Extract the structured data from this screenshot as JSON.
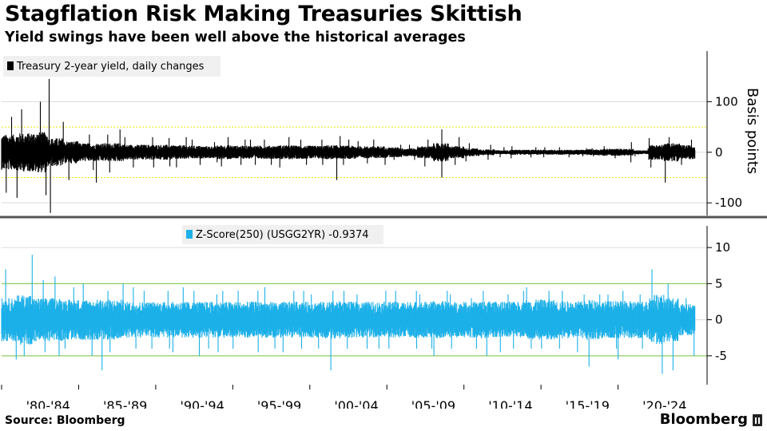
{
  "header": {
    "title": "Stagflation Risk Making Treasuries Skittish",
    "subtitle": "Yield swings have been well above the historical averages"
  },
  "footer": {
    "source": "Source: Bloomberg",
    "brand": "Bloomberg"
  },
  "colors": {
    "top_series": "#000000",
    "bottom_series": "#1cb0e8",
    "top_bands": "#e8e800",
    "bottom_bands": "#7ac943",
    "zero_line": "#e03030",
    "divider": "#555555"
  },
  "chart_data": [
    {
      "type": "bar",
      "panel": "top",
      "series": [
        {
          "name": "Treasury 2-year yield, daily changes",
          "color": "#000000"
        }
      ],
      "ylabel": "Basis points",
      "ylim": [
        -125,
        200
      ],
      "yticks": [
        100,
        0,
        -100
      ],
      "ytick_labels": [
        "100",
        "0",
        "-100"
      ],
      "reference_lines": [
        50,
        -50
      ],
      "x": [
        "1980",
        "1981",
        "1982",
        "1983",
        "1984",
        "1985",
        "1986",
        "1987",
        "1988",
        "1989",
        "1990",
        "1991",
        "1992",
        "1993",
        "1994",
        "1995",
        "1996",
        "1997",
        "1998",
        "1999",
        "2000",
        "2001",
        "2002",
        "2003",
        "2004",
        "2005",
        "2006",
        "2007",
        "2008",
        "2009",
        "2010",
        "2011",
        "2012",
        "2013",
        "2014",
        "2015",
        "2016",
        "2017",
        "2018",
        "2019",
        "2020",
        "2021",
        "2022",
        "2023",
        "2024"
      ],
      "max": [
        70,
        85,
        100,
        145,
        60,
        35,
        35,
        45,
        30,
        30,
        28,
        30,
        25,
        20,
        30,
        25,
        25,
        25,
        30,
        25,
        25,
        32,
        25,
        22,
        25,
        15,
        15,
        25,
        45,
        30,
        18,
        15,
        10,
        12,
        10,
        10,
        10,
        8,
        8,
        12,
        20,
        8,
        28,
        30,
        25
      ],
      "min": [
        -80,
        -90,
        -85,
        -120,
        -55,
        -35,
        -60,
        -40,
        -30,
        -30,
        -28,
        -30,
        -25,
        -20,
        -28,
        -25,
        -25,
        -25,
        -30,
        -25,
        -25,
        -55,
        -25,
        -22,
        -25,
        -15,
        -15,
        -28,
        -50,
        -25,
        -18,
        -15,
        -10,
        -12,
        -10,
        -10,
        -10,
        -8,
        -8,
        -12,
        -20,
        -8,
        -30,
        -60,
        -25
      ],
      "typical": [
        35,
        38,
        40,
        28,
        22,
        18,
        18,
        18,
        15,
        15,
        15,
        14,
        13,
        12,
        14,
        13,
        13,
        13,
        14,
        13,
        13,
        14,
        13,
        12,
        12,
        10,
        8,
        12,
        18,
        12,
        8,
        6,
        4,
        5,
        5,
        5,
        5,
        5,
        6,
        7,
        7,
        4,
        15,
        18,
        14
      ]
    },
    {
      "type": "bar",
      "panel": "bottom",
      "series": [
        {
          "name": "Z-Score(250) (USGG2YR) -0.9374",
          "color": "#1cb0e8"
        }
      ],
      "ylim": [
        -9,
        13
      ],
      "yticks": [
        10,
        5,
        0,
        -5
      ],
      "ytick_labels": [
        "10",
        "5",
        "0",
        "-5"
      ],
      "reference_lines": [
        5,
        -5
      ],
      "x": [
        "1980",
        "1981",
        "1982",
        "1983",
        "1984",
        "1985",
        "1986",
        "1987",
        "1988",
        "1989",
        "1990",
        "1991",
        "1992",
        "1993",
        "1994",
        "1995",
        "1996",
        "1997",
        "1998",
        "1999",
        "2000",
        "2001",
        "2002",
        "2003",
        "2004",
        "2005",
        "2006",
        "2007",
        "2008",
        "2009",
        "2010",
        "2011",
        "2012",
        "2013",
        "2014",
        "2015",
        "2016",
        "2017",
        "2018",
        "2019",
        "2020",
        "2021",
        "2022",
        "2023",
        "2024"
      ],
      "max": [
        7,
        9,
        5.5,
        6,
        4.5,
        5,
        4,
        5,
        4.5,
        4,
        4,
        4.5,
        4,
        3.5,
        4,
        4,
        4,
        4.5,
        4,
        4,
        3.5,
        4,
        4,
        3.5,
        4,
        4,
        4,
        3.5,
        4,
        3.5,
        3,
        4,
        3.5,
        4,
        4.5,
        4,
        4,
        3.5,
        3.5,
        3.5,
        4,
        3.5,
        7,
        5,
        3
      ],
      "min": [
        -5.5,
        -5,
        -4.5,
        -5,
        -4,
        -5,
        -7,
        -4.5,
        -4,
        -4,
        -4,
        -4.5,
        -5,
        -4,
        -4.5,
        -4,
        -4.5,
        -4,
        -4.5,
        -4,
        -4,
        -7,
        -4,
        -4,
        -4,
        -4,
        -4,
        -4,
        -5,
        -4,
        -4,
        -5,
        -4.5,
        -4,
        -4,
        -4,
        -4,
        -4.5,
        -6.5,
        -4,
        -5.5,
        -4,
        -7.5,
        -7,
        -5
      ],
      "typical": [
        3,
        3.5,
        3,
        3,
        2.8,
        2.8,
        2.8,
        2.8,
        2.5,
        2.5,
        2.5,
        2.5,
        2.5,
        2.5,
        2.5,
        2.5,
        2.5,
        2.5,
        2.5,
        2.5,
        2.5,
        2.6,
        2.5,
        2.5,
        2.5,
        2.5,
        2.5,
        2.5,
        2.6,
        2.5,
        2.5,
        2.6,
        2.5,
        2.5,
        2.8,
        2.8,
        2.6,
        2.6,
        2.8,
        2.6,
        2.6,
        2.6,
        3.5,
        3,
        2.2
      ]
    }
  ],
  "x_axis": {
    "categories": [
      "'80-'84",
      "'85-'89",
      "'90-'94",
      "'95-'99",
      "'00-'04",
      "'05-'09",
      "'10-'14",
      "'15-'19",
      "'20-'24"
    ]
  }
}
